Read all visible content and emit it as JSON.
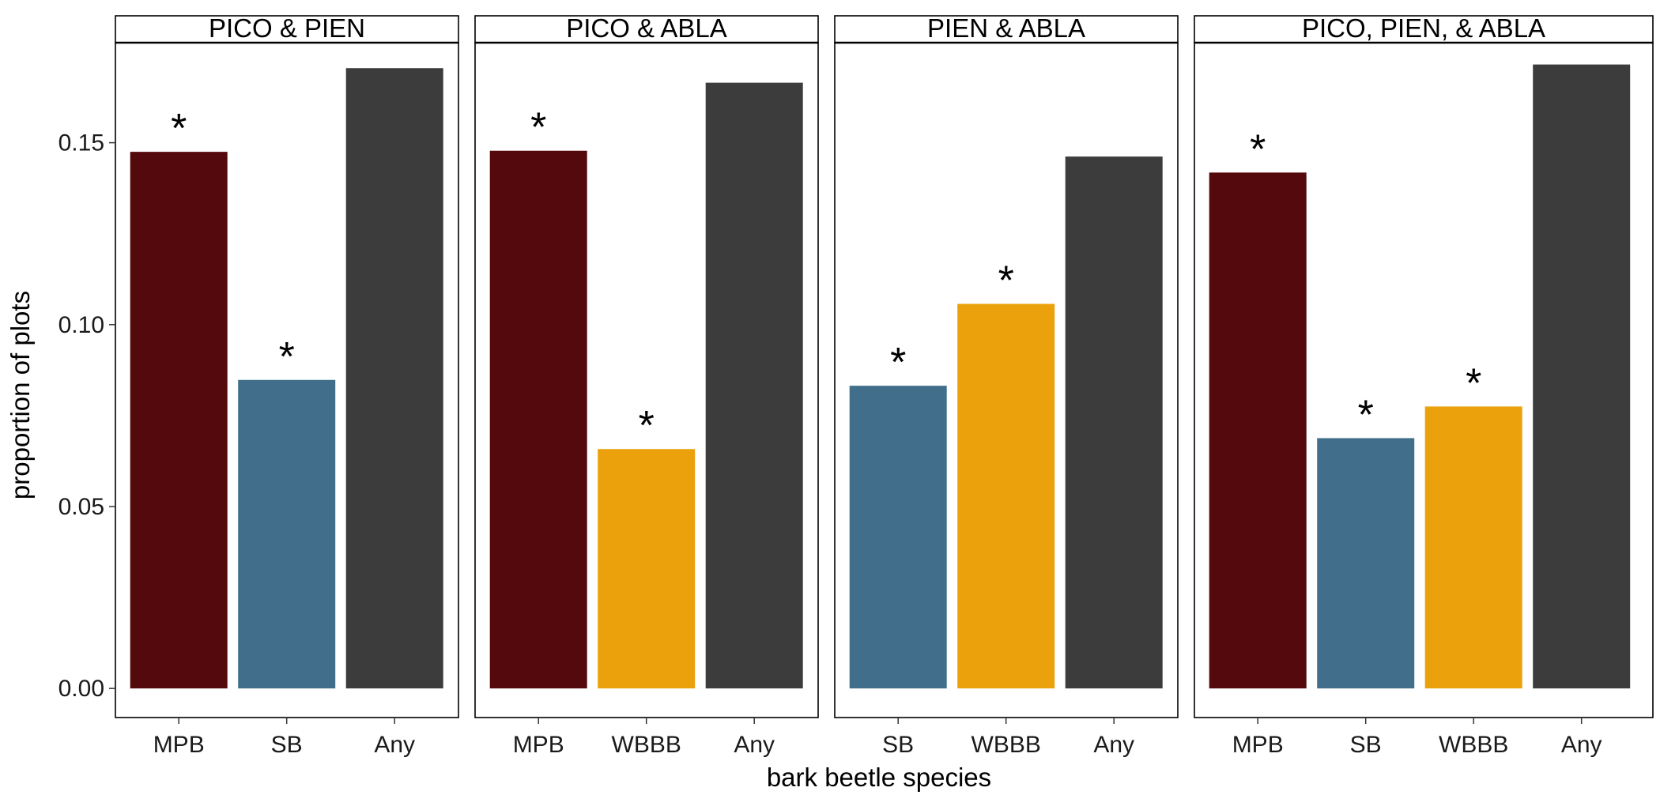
{
  "chart_data": {
    "type": "bar",
    "xlabel": "bark beetle species",
    "ylabel": "proportion of plots",
    "ylim": [
      -0.008,
      0.1775
    ],
    "yticks": [
      "0.00",
      "0.05",
      "0.10",
      "0.15"
    ],
    "ytick_values": [
      0.0,
      0.05,
      0.1,
      0.15
    ],
    "grid": false,
    "legend": "none",
    "colors": {
      "MPB": "#540a0d",
      "SB": "#416f8b",
      "WBBB": "#eba10b",
      "Any": "#3c3c3c"
    },
    "panels": [
      {
        "title": "PICO & PIEN",
        "categories": [
          "MPB",
          "SB",
          "Any"
        ],
        "values": [
          0.1475,
          0.0848,
          0.1705
        ],
        "significant": [
          true,
          true,
          false
        ],
        "marker": "*"
      },
      {
        "title": "PICO & ABLA",
        "categories": [
          "MPB",
          "WBBB",
          "Any"
        ],
        "values": [
          0.1478,
          0.0658,
          0.1665
        ],
        "significant": [
          true,
          true,
          false
        ],
        "marker": "*"
      },
      {
        "title": "PIEN & ABLA",
        "categories": [
          "SB",
          "WBBB",
          "Any"
        ],
        "values": [
          0.0832,
          0.1057,
          0.1462
        ],
        "significant": [
          true,
          true,
          false
        ],
        "marker": "*"
      },
      {
        "title": "PICO, PIEN, & ABLA",
        "categories": [
          "MPB",
          "SB",
          "WBBB",
          "Any"
        ],
        "values": [
          0.1418,
          0.0688,
          0.0775,
          0.1715
        ],
        "significant": [
          true,
          true,
          true,
          false
        ],
        "marker": "*"
      }
    ]
  }
}
